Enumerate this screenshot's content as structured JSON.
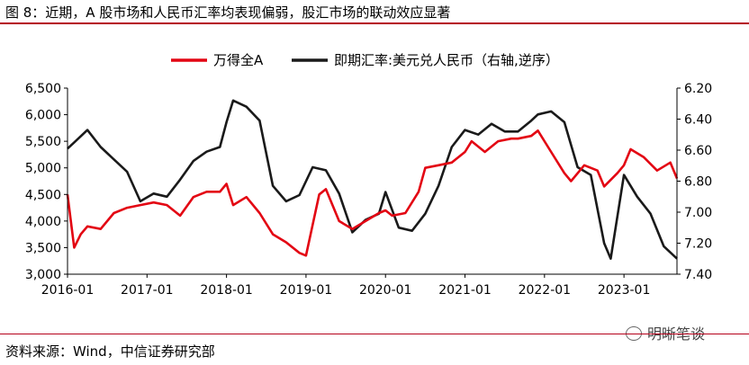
{
  "figure": {
    "title": "图 8：近期，A 股市场和人民币汇率均表现偏弱，股汇市场的联动效应显著",
    "source": "资料来源：Wind，中信证券研究部",
    "watermark": "明晰笔谈"
  },
  "colors": {
    "wind_a": "#e30613",
    "usdcny": "#1a1a1a",
    "accent": "#b5001a"
  },
  "chart_data": {
    "type": "line",
    "title": "",
    "legend_position": "top-center",
    "x_axis": {
      "min": "2016-01",
      "max": "2023-09",
      "ticks": [
        "2016-01",
        "2017-01",
        "2018-01",
        "2019-01",
        "2020-01",
        "2021-01",
        "2022-01",
        "2023-01"
      ]
    },
    "y_left": {
      "min": 3000,
      "max": 6500,
      "ticks": [
        "3,000",
        "3,500",
        "4,000",
        "4,500",
        "5,000",
        "5,500",
        "6,000",
        "6,500"
      ]
    },
    "y_right": {
      "min": 6.2,
      "max": 7.4,
      "inverted": true,
      "ticks": [
        "6.20",
        "6.40",
        "6.60",
        "6.80",
        "7.00",
        "7.20",
        "7.40"
      ]
    },
    "series": [
      {
        "name": "万得全A",
        "axis": "left",
        "color": "#e30613",
        "x": [
          "2016-01",
          "2016-02",
          "2016-03",
          "2016-04",
          "2016-06",
          "2016-08",
          "2016-10",
          "2016-12",
          "2017-02",
          "2017-04",
          "2017-06",
          "2017-08",
          "2017-10",
          "2017-12",
          "2018-01",
          "2018-02",
          "2018-04",
          "2018-06",
          "2018-08",
          "2018-10",
          "2018-12",
          "2019-01",
          "2019-03",
          "2019-04",
          "2019-06",
          "2019-08",
          "2019-10",
          "2019-12",
          "2020-01",
          "2020-02",
          "2020-04",
          "2020-06",
          "2020-07",
          "2020-09",
          "2020-11",
          "2021-01",
          "2021-02",
          "2021-04",
          "2021-06",
          "2021-08",
          "2021-09",
          "2021-11",
          "2021-12",
          "2022-02",
          "2022-04",
          "2022-05",
          "2022-07",
          "2022-09",
          "2022-10",
          "2022-12",
          "2023-01",
          "2023-02",
          "2023-04",
          "2023-06",
          "2023-08",
          "2023-09"
        ],
        "y": [
          4500,
          3500,
          3750,
          3900,
          3850,
          4150,
          4250,
          4300,
          4350,
          4300,
          4100,
          4450,
          4550,
          4550,
          4700,
          4300,
          4450,
          4150,
          3750,
          3600,
          3400,
          3350,
          4500,
          4600,
          4000,
          3850,
          4000,
          4150,
          4200,
          4100,
          4150,
          4550,
          5000,
          5050,
          5100,
          5300,
          5500,
          5300,
          5500,
          5550,
          5550,
          5600,
          5700,
          5300,
          4900,
          4750,
          5050,
          4950,
          4650,
          4900,
          5050,
          5350,
          5200,
          4950,
          5100,
          4800
        ]
      },
      {
        "name": "即期汇率:美元兑人民币（右轴,逆序）",
        "axis": "right",
        "color": "#1a1a1a",
        "x": [
          "2016-01",
          "2016-02",
          "2016-04",
          "2016-06",
          "2016-08",
          "2016-10",
          "2016-12",
          "2017-02",
          "2017-04",
          "2017-06",
          "2017-08",
          "2017-10",
          "2017-12",
          "2018-01",
          "2018-02",
          "2018-04",
          "2018-06",
          "2018-08",
          "2018-10",
          "2018-12",
          "2019-02",
          "2019-04",
          "2019-06",
          "2019-08",
          "2019-10",
          "2019-12",
          "2020-01",
          "2020-03",
          "2020-05",
          "2020-07",
          "2020-09",
          "2020-11",
          "2021-01",
          "2021-03",
          "2021-05",
          "2021-07",
          "2021-09",
          "2021-11",
          "2021-12",
          "2022-02",
          "2022-04",
          "2022-06",
          "2022-08",
          "2022-10",
          "2022-11",
          "2023-01",
          "2023-03",
          "2023-05",
          "2023-07",
          "2023-09"
        ],
        "y": [
          6.59,
          6.55,
          6.47,
          6.58,
          6.66,
          6.74,
          6.93,
          6.88,
          6.9,
          6.79,
          6.67,
          6.61,
          6.58,
          6.42,
          6.28,
          6.32,
          6.41,
          6.83,
          6.93,
          6.89,
          6.71,
          6.73,
          6.88,
          7.13,
          7.05,
          7.01,
          6.87,
          7.1,
          7.12,
          7.01,
          6.83,
          6.58,
          6.47,
          6.5,
          6.43,
          6.48,
          6.48,
          6.41,
          6.37,
          6.35,
          6.42,
          6.71,
          6.76,
          7.2,
          7.3,
          6.76,
          6.9,
          7.01,
          7.22,
          7.3
        ]
      }
    ]
  }
}
